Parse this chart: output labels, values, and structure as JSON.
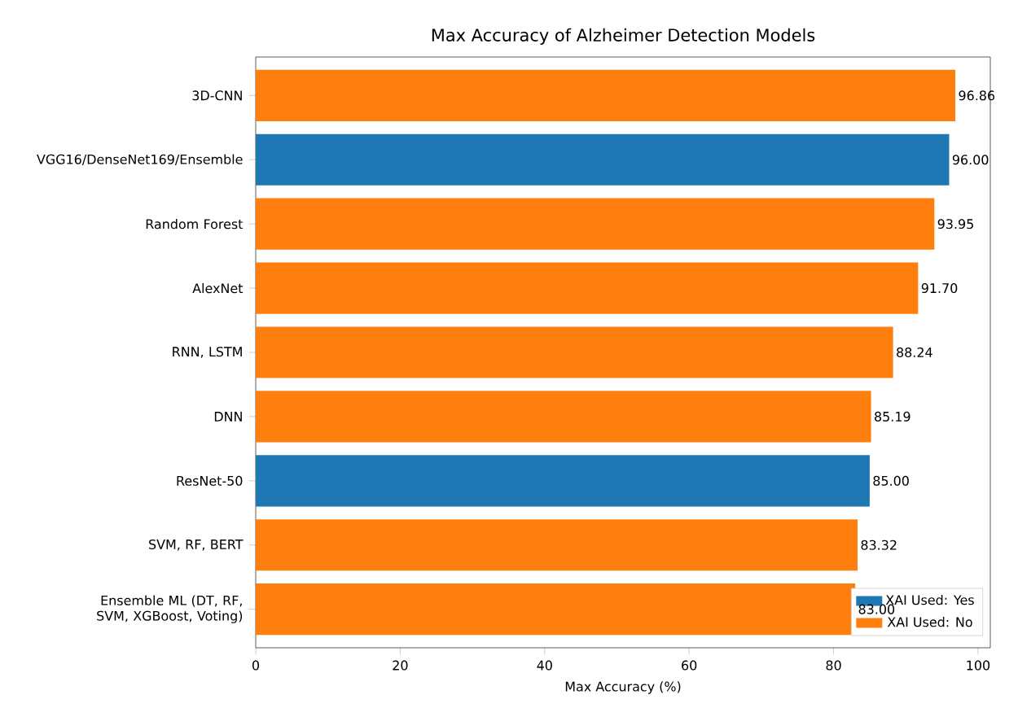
{
  "chart_data": {
    "type": "bar",
    "orientation": "horizontal",
    "title": "Max Accuracy of Alzheimer Detection Models",
    "xlabel": "Max Accuracy (%)",
    "categories": [
      "3D-CNN",
      "VGG16/DenseNet169/Ensemble",
      "Random Forest",
      "AlexNet",
      "RNN, LSTM",
      "DNN",
      "ResNet-50",
      "SVM, RF, BERT",
      "Ensemble ML (DT, RF, SVM, XGBoost, Voting)"
    ],
    "series": [
      {
        "name": "XAI Used: Yes",
        "color": "#1f77b4",
        "values": [
          null,
          96.0,
          null,
          null,
          null,
          null,
          85.0,
          null,
          null
        ],
        "value_labels": [
          null,
          "96.00",
          null,
          null,
          null,
          null,
          "85.00",
          null,
          null
        ]
      },
      {
        "name": "XAI Used: No",
        "color": "#ff7f0e",
        "values": [
          96.86,
          null,
          93.95,
          91.7,
          88.24,
          85.19,
          null,
          83.32,
          83.0
        ],
        "value_labels": [
          "96.86",
          null,
          "93.95",
          "91.70",
          "88.24",
          "85.19",
          null,
          "83.32",
          "83.00"
        ]
      }
    ],
    "xlim": [
      0,
      101.7
    ],
    "xticks": [
      0,
      20,
      40,
      60,
      80,
      100
    ],
    "legend": "bottom right"
  }
}
